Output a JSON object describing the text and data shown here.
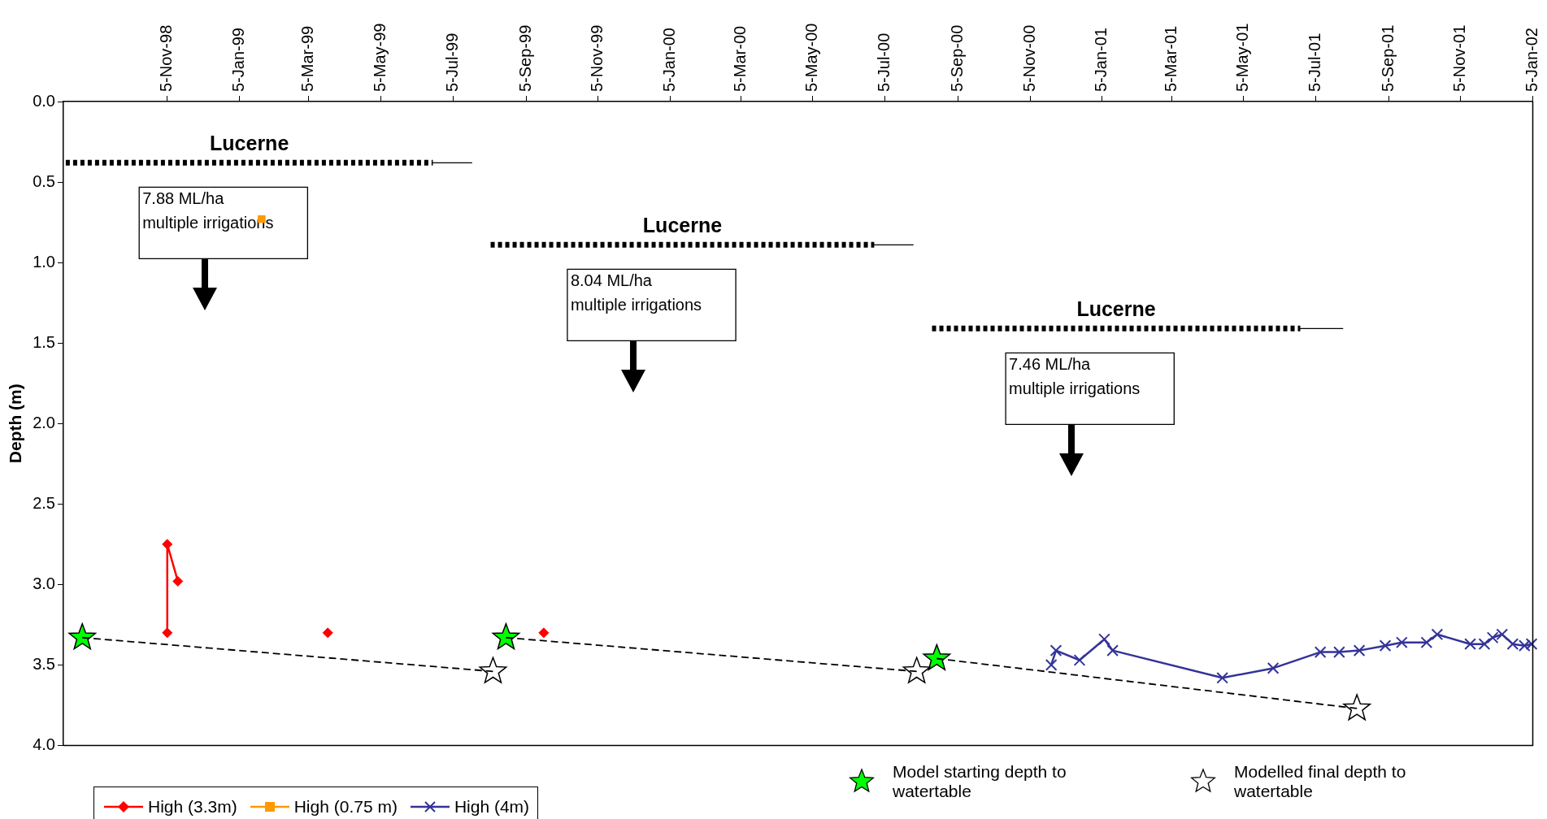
{
  "chart_data": {
    "type": "line",
    "ylabel": "Depth (m)",
    "legend": "bottom",
    "xlim": [
      "1998-08-09",
      "2002-01-05"
    ],
    "xticks": [
      {
        "value": "1998-11-05",
        "label": "5-Nov-98"
      },
      {
        "value": "1999-01-05",
        "label": "5-Jan-99"
      },
      {
        "value": "1999-03-05",
        "label": "5-Mar-99"
      },
      {
        "value": "1999-05-05",
        "label": "5-May-99"
      },
      {
        "value": "1999-07-05",
        "label": "5-Jul-99"
      },
      {
        "value": "1999-09-05",
        "label": "5-Sep-99"
      },
      {
        "value": "1999-11-05",
        "label": "5-Nov-99"
      },
      {
        "value": "2000-01-05",
        "label": "5-Jan-00"
      },
      {
        "value": "2000-03-05",
        "label": "5-Mar-00"
      },
      {
        "value": "2000-05-05",
        "label": "5-May-00"
      },
      {
        "value": "2000-07-05",
        "label": "5-Jul-00"
      },
      {
        "value": "2000-09-05",
        "label": "5-Sep-00"
      },
      {
        "value": "2000-11-05",
        "label": "5-Nov-00"
      },
      {
        "value": "2001-01-05",
        "label": "5-Jan-01"
      },
      {
        "value": "2001-03-05",
        "label": "5-Mar-01"
      },
      {
        "value": "2001-05-05",
        "label": "5-May-01"
      },
      {
        "value": "2001-07-05",
        "label": "5-Jul-01"
      },
      {
        "value": "2001-09-05",
        "label": "5-Sep-01"
      },
      {
        "value": "2001-11-05",
        "label": "5-Nov-01"
      },
      {
        "value": "2002-01-05",
        "label": "5-Jan-02"
      }
    ],
    "ylim": [
      4.0,
      0.0
    ],
    "yticks": [
      {
        "value": 0,
        "label": "0.0"
      },
      {
        "value": 0.5,
        "label": "0.5"
      },
      {
        "value": 1,
        "label": "1.0"
      },
      {
        "value": 1.5,
        "label": "1.5"
      },
      {
        "value": 2,
        "label": "2.0"
      },
      {
        "value": 2.5,
        "label": "2.5"
      },
      {
        "value": 3,
        "label": "3.0"
      },
      {
        "value": 3.5,
        "label": "3.5"
      },
      {
        "value": 4,
        "label": "4.0"
      }
    ],
    "annotations": [
      "7.88 ML/ha\nmultiple irrigations",
      "8.04 ML/ha\nmultiple irrigations",
      "7.46 ML/ha\nmultiple irrigations"
    ],
    "series": [
      {
        "name": "High (3.3m)",
        "type": "line",
        "color": "#ff0000",
        "marker": "diamond",
        "line_style": "solid",
        "x": [
          "1998-11-05",
          "1998-11-05",
          "1998-11-14"
        ],
        "values": [
          3.3,
          2.75,
          2.98
        ]
      },
      {
        "type": "scatter",
        "color": "#ff0000",
        "marker": "diamond",
        "x": [
          "1999-03-21",
          "1999-09-20"
        ],
        "values": [
          3.3,
          3.3
        ]
      },
      {
        "name": "High (0.75 m)",
        "type": "line",
        "color": "#ff9900",
        "marker": "square",
        "line_style": "solid",
        "x": [
          "1999-01-24"
        ],
        "values": [
          0.73
        ]
      },
      {
        "name": "High (4m)",
        "type": "line",
        "color": "#333399",
        "marker": "cross",
        "line_style": "solid",
        "x": [
          "2000-11-23",
          "2000-11-27",
          "2000-12-17",
          "2001-01-07",
          "2001-01-14",
          "2001-04-17",
          "2001-05-30",
          "2001-07-09",
          "2001-07-25",
          "2001-08-11",
          "2001-09-02",
          "2001-09-16",
          "2001-10-07",
          "2001-10-16",
          "2001-11-13",
          "2001-11-25",
          "2001-12-02",
          "2001-12-10",
          "2001-12-19",
          "2001-12-29",
          "2002-01-04"
        ],
        "values": [
          3.5,
          3.41,
          3.47,
          3.34,
          3.41,
          3.58,
          3.52,
          3.42,
          3.42,
          3.41,
          3.38,
          3.36,
          3.36,
          3.31,
          3.37,
          3.37,
          3.33,
          3.31,
          3.37,
          3.38,
          3.37
        ]
      },
      {
        "type": "line",
        "color": "#000000",
        "marker": "none",
        "line_style": "dashed",
        "x": [
          "1998-08-25",
          "1999-08-08"
        ],
        "values": [
          3.33,
          3.54
        ]
      },
      {
        "type": "line",
        "color": "#000000",
        "marker": "none",
        "line_style": "dashed",
        "x": [
          "1999-08-19",
          "2000-08-01"
        ],
        "values": [
          3.33,
          3.54
        ]
      },
      {
        "type": "line",
        "color": "#000000",
        "marker": "none",
        "line_style": "dashed",
        "x": [
          "2000-08-18",
          "2001-08-09"
        ],
        "values": [
          3.46,
          3.77
        ]
      },
      {
        "name": "Model starting depth to watertable",
        "type": "scatter",
        "color": "#00ff00",
        "marker": "star",
        "x": [
          "1998-08-25",
          "1999-08-19",
          "2000-08-18"
        ],
        "values": [
          3.33,
          3.33,
          3.46
        ]
      },
      {
        "name": "Modelled final depth to watertable",
        "type": "scatter",
        "color": "#ffffff",
        "marker": "star",
        "x": [
          "1999-08-08",
          "2000-08-01",
          "2001-08-09"
        ],
        "values": [
          3.54,
          3.54,
          3.77
        ]
      },
      {
        "name": "Lucerne",
        "type": "line",
        "color": "#000000",
        "marker": "none",
        "line_style": "dotted",
        "x": [
          "1998-08-11",
          "1999-06-18"
        ],
        "values": [
          0.38,
          0.38
        ]
      },
      {
        "type": "line",
        "color": "#000000",
        "marker": "none",
        "line_style": "solid",
        "x": [
          "1999-06-18",
          "1999-07-21"
        ],
        "values": [
          0.38,
          0.38
        ]
      },
      {
        "name": "Lucerne",
        "type": "line",
        "color": "#000000",
        "marker": "none",
        "line_style": "dotted",
        "x": [
          "1999-08-06",
          "2000-06-26"
        ],
        "values": [
          0.89,
          0.89
        ]
      },
      {
        "type": "line",
        "color": "#000000",
        "marker": "none",
        "line_style": "solid",
        "x": [
          "2000-06-26",
          "2000-07-29"
        ],
        "values": [
          0.89,
          0.89
        ]
      },
      {
        "name": "Lucerne",
        "type": "line",
        "color": "#000000",
        "marker": "none",
        "line_style": "dotted",
        "x": [
          "2000-08-14",
          "2001-06-22"
        ],
        "values": [
          1.41,
          1.41
        ]
      },
      {
        "type": "line",
        "color": "#000000",
        "marker": "none",
        "line_style": "solid",
        "x": [
          "2001-06-22",
          "2001-07-28"
        ],
        "values": [
          1.41,
          1.41
        ]
      }
    ]
  }
}
